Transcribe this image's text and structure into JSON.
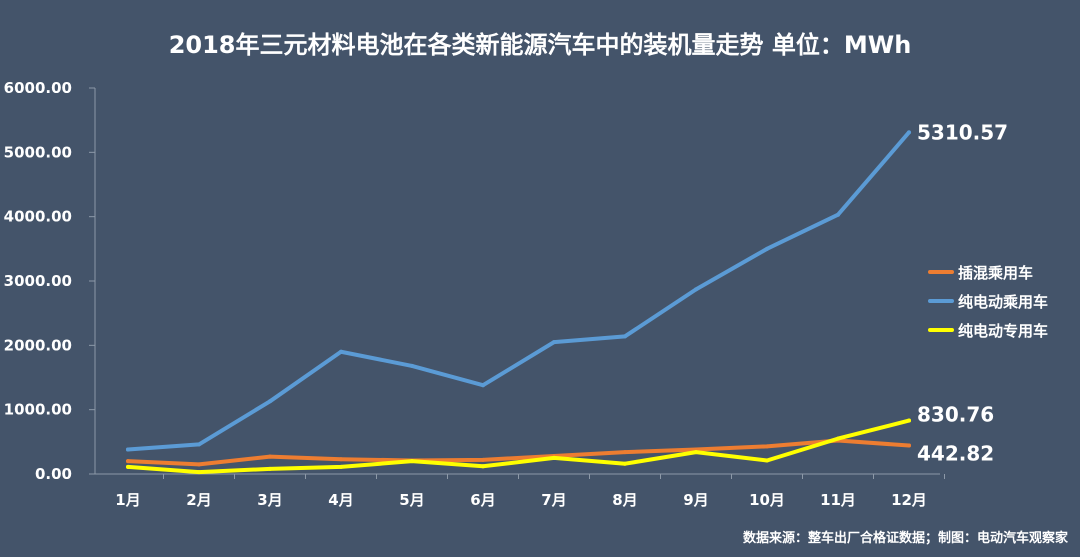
{
  "chart_data": {
    "type": "line",
    "title": "2018年三元材料电池在各类新能源汽车中的装机量走势  单位：MWh",
    "categories": [
      "1月",
      "2月",
      "3月",
      "4月",
      "5月",
      "6月",
      "7月",
      "8月",
      "9月",
      "10月",
      "11月",
      "12月"
    ],
    "ylim": [
      0,
      6000
    ],
    "yticks": [
      "0.00",
      "1000.00",
      "2000.00",
      "3000.00",
      "4000.00",
      "5000.00",
      "6000.00"
    ],
    "grid": false,
    "legend_position": "right",
    "series": [
      {
        "name": "插混乘用车",
        "color": "#ed7d31",
        "values": [
          200,
          150,
          270,
          230,
          210,
          220,
          280,
          340,
          380,
          430,
          520,
          442.82
        ]
      },
      {
        "name": "纯电动乘用车",
        "color": "#5b9bd5",
        "values": [
          380,
          460,
          1130,
          1900,
          1680,
          1380,
          2050,
          2140,
          2870,
          3500,
          4030,
          5310.57
        ]
      },
      {
        "name": "纯电动专用车",
        "color": "#ffff00",
        "values": [
          110,
          30,
          80,
          110,
          200,
          120,
          250,
          160,
          340,
          210,
          550,
          830.76
        ]
      }
    ],
    "end_labels": [
      {
        "series": 1,
        "text": "5310.57"
      },
      {
        "series": 2,
        "text": "830.76"
      },
      {
        "series": 0,
        "text": "442.82"
      }
    ],
    "source_note": "数据来源：整车出厂合格证数据；制图：电动汽车观察家"
  }
}
